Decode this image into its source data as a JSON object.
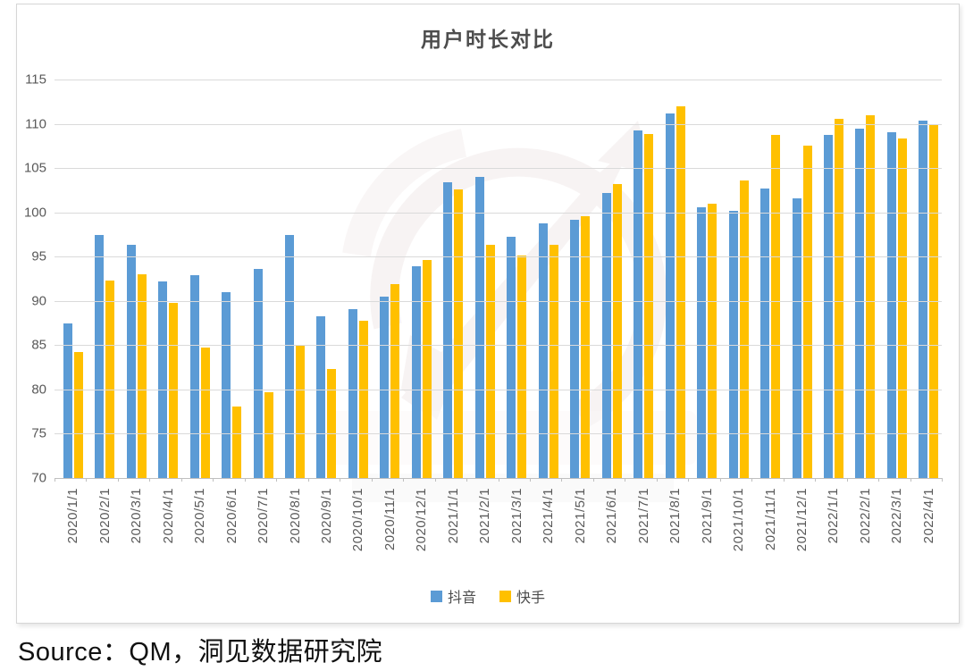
{
  "page": {
    "source": "Source：QM，洞见数据研究院"
  },
  "chart_data": {
    "type": "bar",
    "title": "用户时长对比",
    "categories": [
      "2020/1/1",
      "2020/2/1",
      "2020/3/1",
      "2020/4/1",
      "2020/5/1",
      "2020/6/1",
      "2020/7/1",
      "2020/8/1",
      "2020/9/1",
      "2020/10/1",
      "2020/11/1",
      "2020/12/1",
      "2021/1/1",
      "2021/2/1",
      "2021/3/1",
      "2021/4/1",
      "2021/5/1",
      "2021/6/1",
      "2021/7/1",
      "2021/8/1",
      "2021/9/1",
      "2021/10/1",
      "2021/11/1",
      "2021/12/1",
      "2022/1/1",
      "2022/2/1",
      "2022/3/1",
      "2022/4/1"
    ],
    "series": [
      {
        "name": "抖音",
        "slug": "douyin",
        "color": "#5B9BD5",
        "values": [
          87.5,
          97.4,
          96.3,
          92.2,
          92.9,
          91.0,
          93.6,
          97.4,
          88.3,
          89.1,
          90.5,
          93.9,
          103.4,
          104.0,
          97.2,
          98.8,
          99.2,
          102.2,
          109.3,
          111.2,
          100.6,
          100.2,
          102.7,
          101.6,
          108.7,
          109.5,
          109.0,
          110.4
        ]
      },
      {
        "name": "快手",
        "slug": "kuaishou",
        "color": "#FFC000",
        "values": [
          84.2,
          92.3,
          93.0,
          89.8,
          84.7,
          78.1,
          79.7,
          84.9,
          82.3,
          87.8,
          91.9,
          94.6,
          102.6,
          96.3,
          95.1,
          96.3,
          99.6,
          103.2,
          108.8,
          112.0,
          101.0,
          103.6,
          108.7,
          107.5,
          110.6,
          111.0,
          108.3,
          109.9
        ]
      }
    ],
    "ylim": [
      70,
      115
    ],
    "yticks": [
      70,
      75,
      80,
      85,
      90,
      95,
      100,
      105,
      110,
      115
    ],
    "grid": true,
    "legend_position": "bottom",
    "xlabel": "",
    "ylabel": ""
  }
}
